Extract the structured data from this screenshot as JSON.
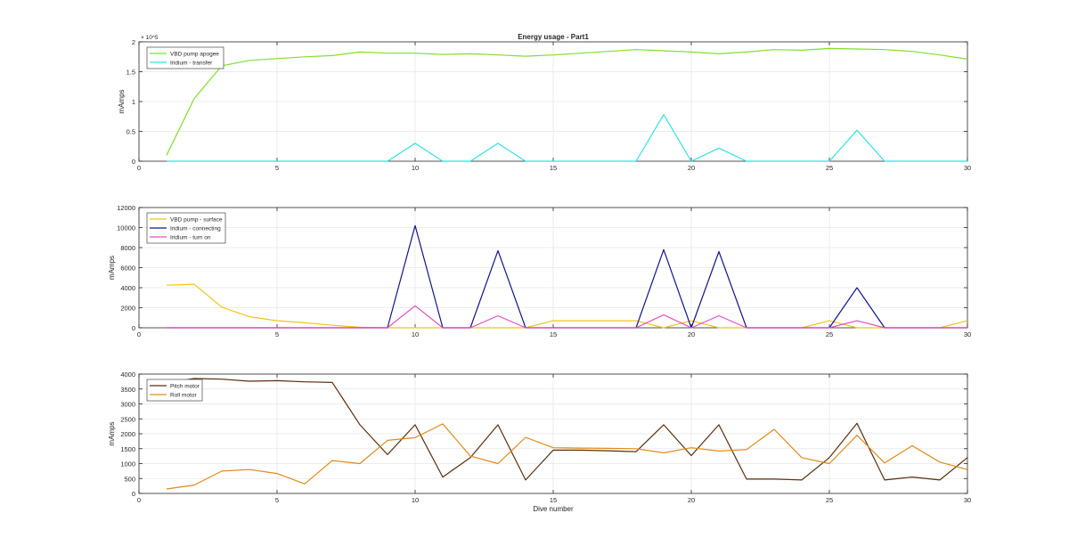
{
  "figure": {
    "title": "Energy usage - Part1",
    "xlabel": "Dive number"
  },
  "chart_data": [
    {
      "type": "line",
      "title": "Energy usage - Part1",
      "xlabel": "",
      "ylabel": "mAmps",
      "y_exponent_label": "× 10^5",
      "xlim": [
        0,
        30
      ],
      "ylim": [
        0,
        2
      ],
      "y_scale_factor": 100000,
      "grid": true,
      "legend_position": "top-left",
      "xticks": [
        0,
        5,
        10,
        15,
        20,
        25,
        30
      ],
      "yticks": [
        0,
        0.5,
        1,
        1.5,
        2
      ],
      "ytick_labels": [
        "0",
        "0.5",
        "1",
        "1.5",
        "2"
      ],
      "series": [
        {
          "name": "VBD pump apogee",
          "color": "#7fe02a",
          "x": [
            1,
            2,
            3,
            4,
            5,
            6,
            7,
            8,
            9,
            10,
            11,
            12,
            13,
            14,
            15,
            16,
            17,
            18,
            19,
            20,
            21,
            22,
            23,
            24,
            25,
            26,
            27,
            28,
            29,
            30
          ],
          "values": [
            0.1,
            1.05,
            1.6,
            1.69,
            1.72,
            1.75,
            1.77,
            1.83,
            1.81,
            1.81,
            1.79,
            1.8,
            1.78,
            1.76,
            1.78,
            1.81,
            1.84,
            1.87,
            1.85,
            1.83,
            1.8,
            1.83,
            1.87,
            1.86,
            1.89,
            1.88,
            1.87,
            1.84,
            1.78,
            1.71
          ]
        },
        {
          "name": "Iridium - transfer",
          "color": "#2ee2e8",
          "x": [
            1,
            2,
            3,
            4,
            5,
            6,
            7,
            8,
            9,
            10,
            11,
            12,
            13,
            14,
            15,
            16,
            17,
            18,
            19,
            20,
            21,
            22,
            23,
            24,
            25,
            26,
            27,
            28,
            29,
            30
          ],
          "values": [
            0,
            0,
            0,
            0,
            0,
            0,
            0,
            0,
            0,
            0.3,
            0,
            0,
            0.3,
            0,
            0,
            0,
            0,
            0,
            0.78,
            0,
            0.22,
            0,
            0,
            0,
            0,
            0.52,
            0,
            0,
            0,
            0
          ]
        }
      ]
    },
    {
      "type": "line",
      "xlabel": "",
      "ylabel": "mAmps",
      "xlim": [
        0,
        30
      ],
      "ylim": [
        0,
        12000
      ],
      "grid": true,
      "legend_position": "top-left",
      "xticks": [
        0,
        5,
        10,
        15,
        20,
        25,
        30
      ],
      "yticks": [
        0,
        2000,
        4000,
        6000,
        8000,
        10000,
        12000
      ],
      "ytick_labels": [
        "0",
        "2000",
        "4000",
        "6000",
        "8000",
        "10000",
        "12000"
      ],
      "series": [
        {
          "name": "VBD pump - surface",
          "color": "#f2c418",
          "x": [
            1,
            2,
            3,
            4,
            5,
            6,
            7,
            8,
            9,
            10,
            11,
            12,
            13,
            14,
            15,
            16,
            17,
            18,
            19,
            20,
            21,
            22,
            23,
            24,
            25,
            26,
            27,
            28,
            29,
            30
          ],
          "values": [
            4250,
            4350,
            2050,
            1100,
            700,
            500,
            250,
            50,
            0,
            0,
            0,
            0,
            0,
            0,
            700,
            700,
            700,
            700,
            0,
            700,
            0,
            0,
            0,
            0,
            700,
            0,
            0,
            0,
            0,
            700
          ]
        },
        {
          "name": "Iridium - connecting",
          "color": "#14148c",
          "x": [
            1,
            2,
            3,
            4,
            5,
            6,
            7,
            8,
            9,
            10,
            11,
            12,
            13,
            14,
            15,
            16,
            17,
            18,
            19,
            20,
            21,
            22,
            23,
            24,
            25,
            26,
            27,
            28,
            29,
            30
          ],
          "values": [
            0,
            0,
            0,
            0,
            0,
            0,
            0,
            0,
            0,
            10200,
            0,
            0,
            7700,
            0,
            0,
            0,
            0,
            0,
            7800,
            0,
            7600,
            0,
            0,
            0,
            0,
            4000,
            0,
            0,
            0,
            0
          ]
        },
        {
          "name": "Iridium - turn on",
          "color": "#e24ec8",
          "x": [
            1,
            2,
            3,
            4,
            5,
            6,
            7,
            8,
            9,
            10,
            11,
            12,
            13,
            14,
            15,
            16,
            17,
            18,
            19,
            20,
            21,
            22,
            23,
            24,
            25,
            26,
            27,
            28,
            29,
            30
          ],
          "values": [
            0,
            0,
            0,
            0,
            0,
            0,
            0,
            0,
            0,
            2200,
            0,
            0,
            1200,
            0,
            0,
            0,
            0,
            0,
            1300,
            0,
            1200,
            0,
            0,
            0,
            0,
            700,
            0,
            0,
            0,
            0
          ]
        }
      ]
    },
    {
      "type": "line",
      "xlabel": "Dive number",
      "ylabel": "mAmps",
      "xlim": [
        0,
        30
      ],
      "ylim": [
        0,
        4000
      ],
      "grid": true,
      "legend_position": "top-left",
      "xticks": [
        0,
        5,
        10,
        15,
        20,
        25,
        30
      ],
      "yticks": [
        0,
        500,
        1000,
        1500,
        2000,
        2500,
        3000,
        3500,
        4000
      ],
      "ytick_labels": [
        "0",
        "500",
        "1000",
        "1500",
        "2000",
        "2500",
        "3000",
        "3500",
        "4000"
      ],
      "series": [
        {
          "name": "Pitch motor",
          "color": "#5b2e0e",
          "x": [
            1,
            2,
            3,
            4,
            5,
            6,
            7,
            8,
            9,
            10,
            11,
            12,
            13,
            14,
            15,
            16,
            17,
            18,
            19,
            20,
            21,
            22,
            23,
            24,
            25,
            26,
            27,
            28,
            29,
            30
          ],
          "values": [
            3700,
            3850,
            3830,
            3760,
            3780,
            3740,
            3720,
            2300,
            1300,
            2300,
            550,
            1200,
            2300,
            450,
            1450,
            1450,
            1430,
            1400,
            2300,
            1270,
            2300,
            480,
            480,
            450,
            1200,
            2350,
            450,
            550,
            450,
            1200
          ]
        },
        {
          "name": "Roll motor",
          "color": "#e18a18",
          "x": [
            1,
            2,
            3,
            4,
            5,
            6,
            7,
            8,
            9,
            10,
            11,
            12,
            13,
            14,
            15,
            16,
            17,
            18,
            19,
            20,
            21,
            22,
            23,
            24,
            25,
            26,
            27,
            28,
            29,
            30
          ],
          "values": [
            150,
            280,
            750,
            800,
            670,
            320,
            1100,
            1000,
            1780,
            1870,
            2330,
            1250,
            1000,
            1880,
            1530,
            1520,
            1510,
            1500,
            1360,
            1530,
            1420,
            1470,
            2150,
            1200,
            1000,
            1950,
            1020,
            1600,
            1050,
            800
          ]
        }
      ]
    }
  ]
}
